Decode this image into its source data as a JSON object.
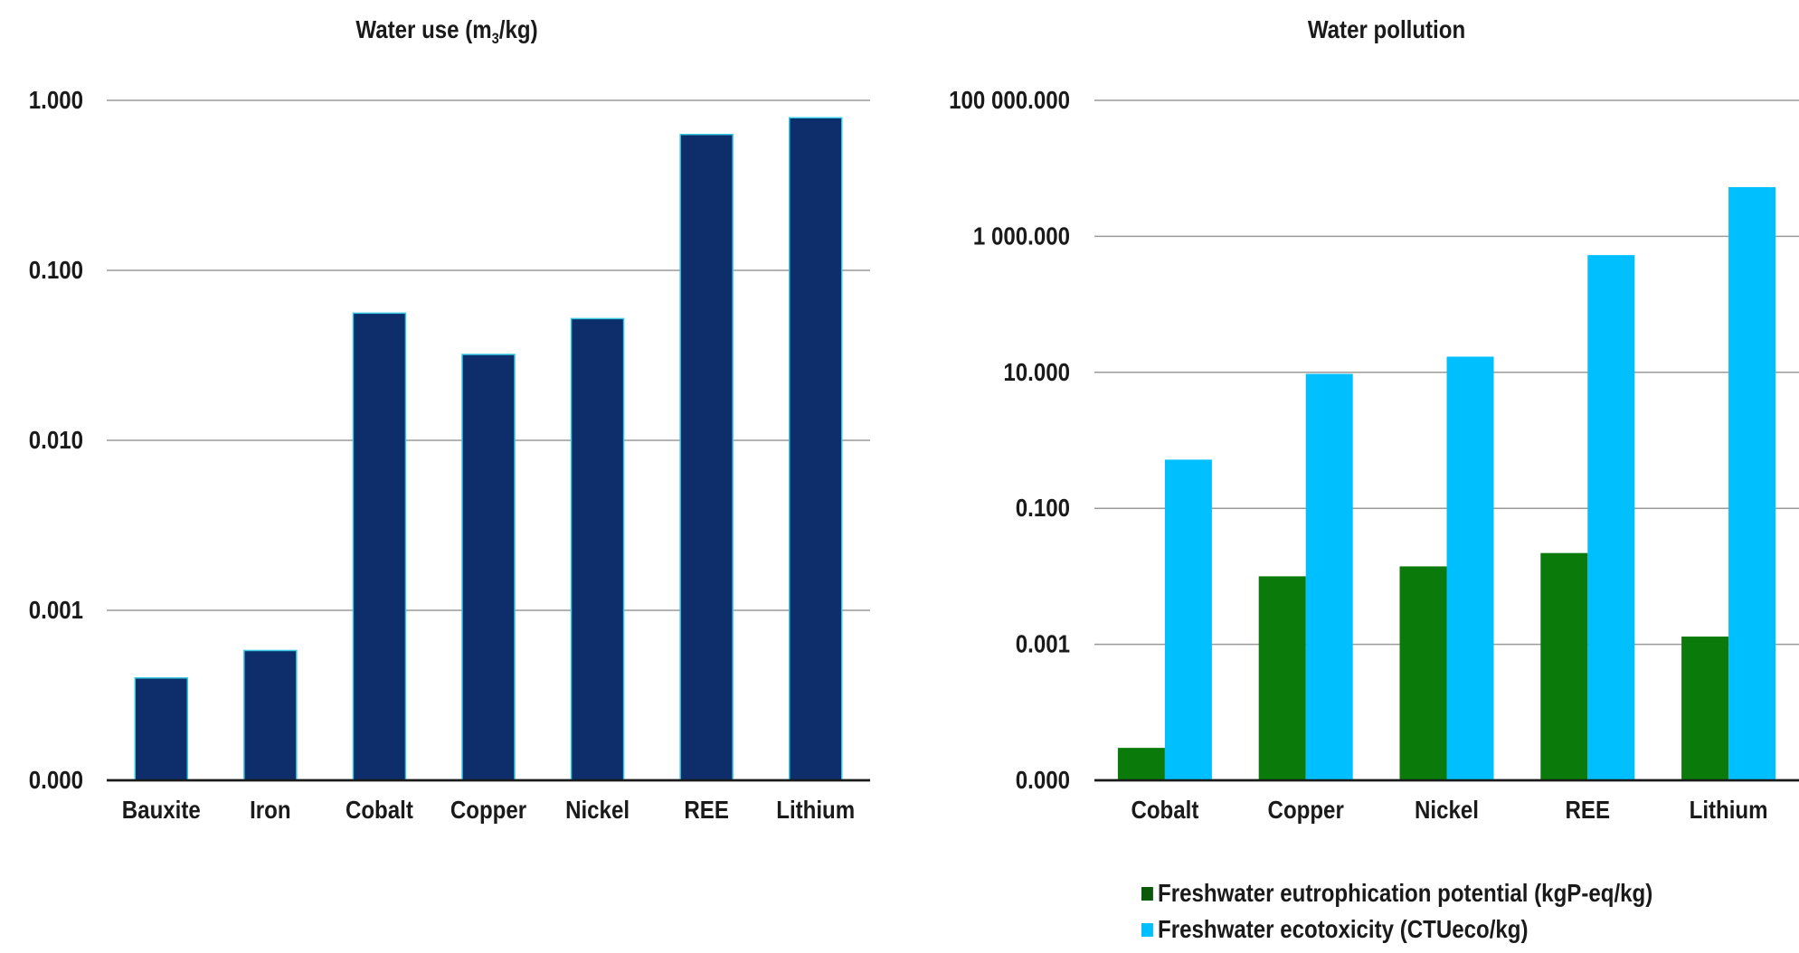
{
  "chart_data": [
    {
      "type": "bar",
      "title_parts": [
        "Water use (m",
        "3",
        "/kg)"
      ],
      "y_scale": "log",
      "ylim": [
        0.0001,
        1
      ],
      "y_ticks": [
        {
          "value": 0.0001,
          "label": "0.000"
        },
        {
          "value": 0.001,
          "label": "0.001"
        },
        {
          "value": 0.01,
          "label": "0.010"
        },
        {
          "value": 0.1,
          "label": "0.100"
        },
        {
          "value": 1,
          "label": "1.000"
        }
      ],
      "grid": true,
      "categories": [
        "Bauxite",
        "Iron",
        "Cobalt",
        "Copper",
        "Nickel",
        "REE",
        "Lithium"
      ],
      "series": [
        {
          "color": "#0e2d6b",
          "values": [
            0.0004,
            0.00058,
            0.056,
            0.032,
            0.052,
            0.63,
            0.79
          ]
        }
      ]
    },
    {
      "type": "bar",
      "title": "Water pollution",
      "y_scale": "log",
      "ylim": [
        1e-05,
        100000
      ],
      "y_ticks": [
        {
          "value": 1e-05,
          "label": "0.000"
        },
        {
          "value": 0.001,
          "label": "0.001"
        },
        {
          "value": 0.1,
          "label": "0.100"
        },
        {
          "value": 10,
          "label": "10.000"
        },
        {
          "value": 1000,
          "label": "1 000.000"
        },
        {
          "value": 100000,
          "label": "100 000.000"
        }
      ],
      "grid": true,
      "categories": [
        "Cobalt",
        "Copper",
        "Nickel",
        "REE",
        "Lithium"
      ],
      "legend_position": "bottom",
      "series": [
        {
          "name": "Freshwater eutrophication potential (kgP-eq/kg)",
          "color": "#0a7a0a",
          "values": [
            3e-05,
            0.01,
            0.014,
            0.022,
            0.0013
          ]
        },
        {
          "name": "Freshwater ecotoxicity (CTUeco/kg)",
          "color": "#00bfff",
          "values": [
            0.52,
            9.5,
            17,
            530,
            5300
          ]
        }
      ]
    }
  ]
}
